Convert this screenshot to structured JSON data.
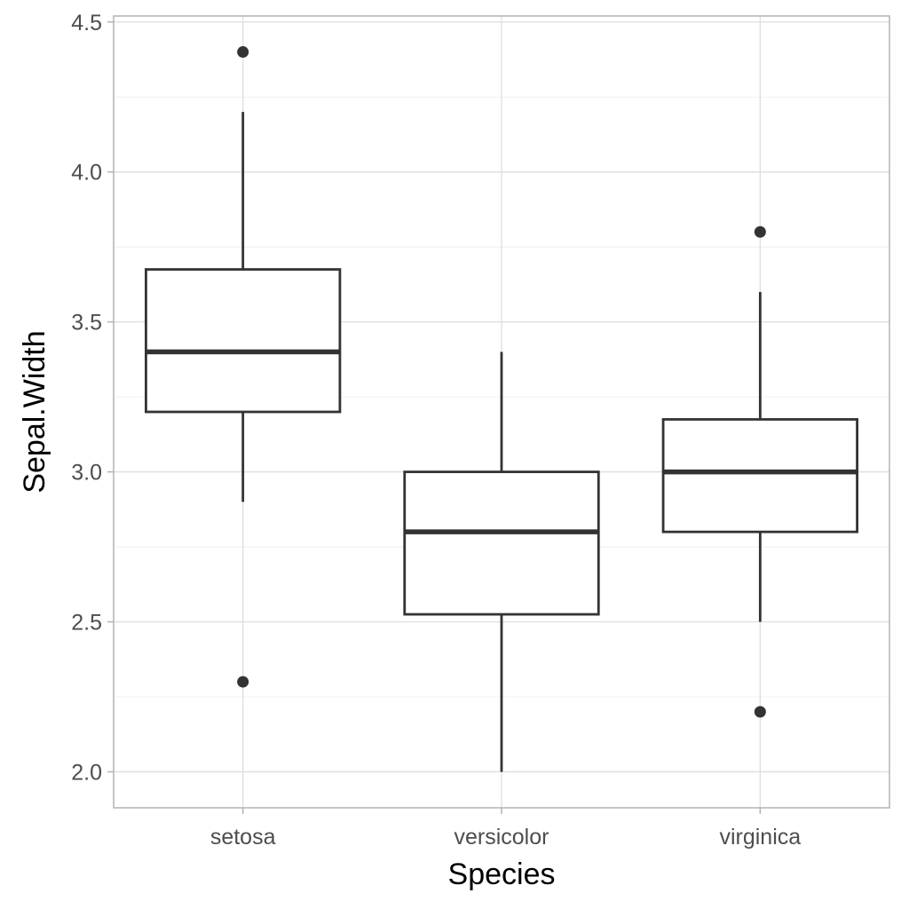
{
  "chart_data": {
    "type": "boxplot",
    "xlabel": "Species",
    "ylabel": "Sepal.Width",
    "ylim": [
      1.88,
      4.52
    ],
    "y_ticks": [
      2.0,
      2.5,
      3.0,
      3.5,
      4.0,
      4.5
    ],
    "y_tick_labels": [
      "2.0",
      "2.5",
      "3.0",
      "3.5",
      "4.0",
      "4.5"
    ],
    "categories": [
      "setosa",
      "versicolor",
      "virginica"
    ],
    "grid": true,
    "legend": "none",
    "boxes": [
      {
        "category": "setosa",
        "whisker_low": 2.9,
        "q1": 3.2,
        "median": 3.4,
        "q3": 3.675,
        "whisker_high": 4.2,
        "outliers": [
          4.4,
          2.3
        ]
      },
      {
        "category": "versicolor",
        "whisker_low": 2.0,
        "q1": 2.525,
        "median": 2.8,
        "q3": 3.0,
        "whisker_high": 3.4,
        "outliers": []
      },
      {
        "category": "virginica",
        "whisker_low": 2.5,
        "q1": 2.8,
        "median": 3.0,
        "q3": 3.175,
        "whisker_high": 3.6,
        "outliers": [
          3.8,
          2.2
        ]
      }
    ],
    "colors": {
      "box_line": "#333333",
      "box_fill": "#ffffff",
      "grid": "#dedede",
      "border": "#b3b3b3"
    }
  }
}
